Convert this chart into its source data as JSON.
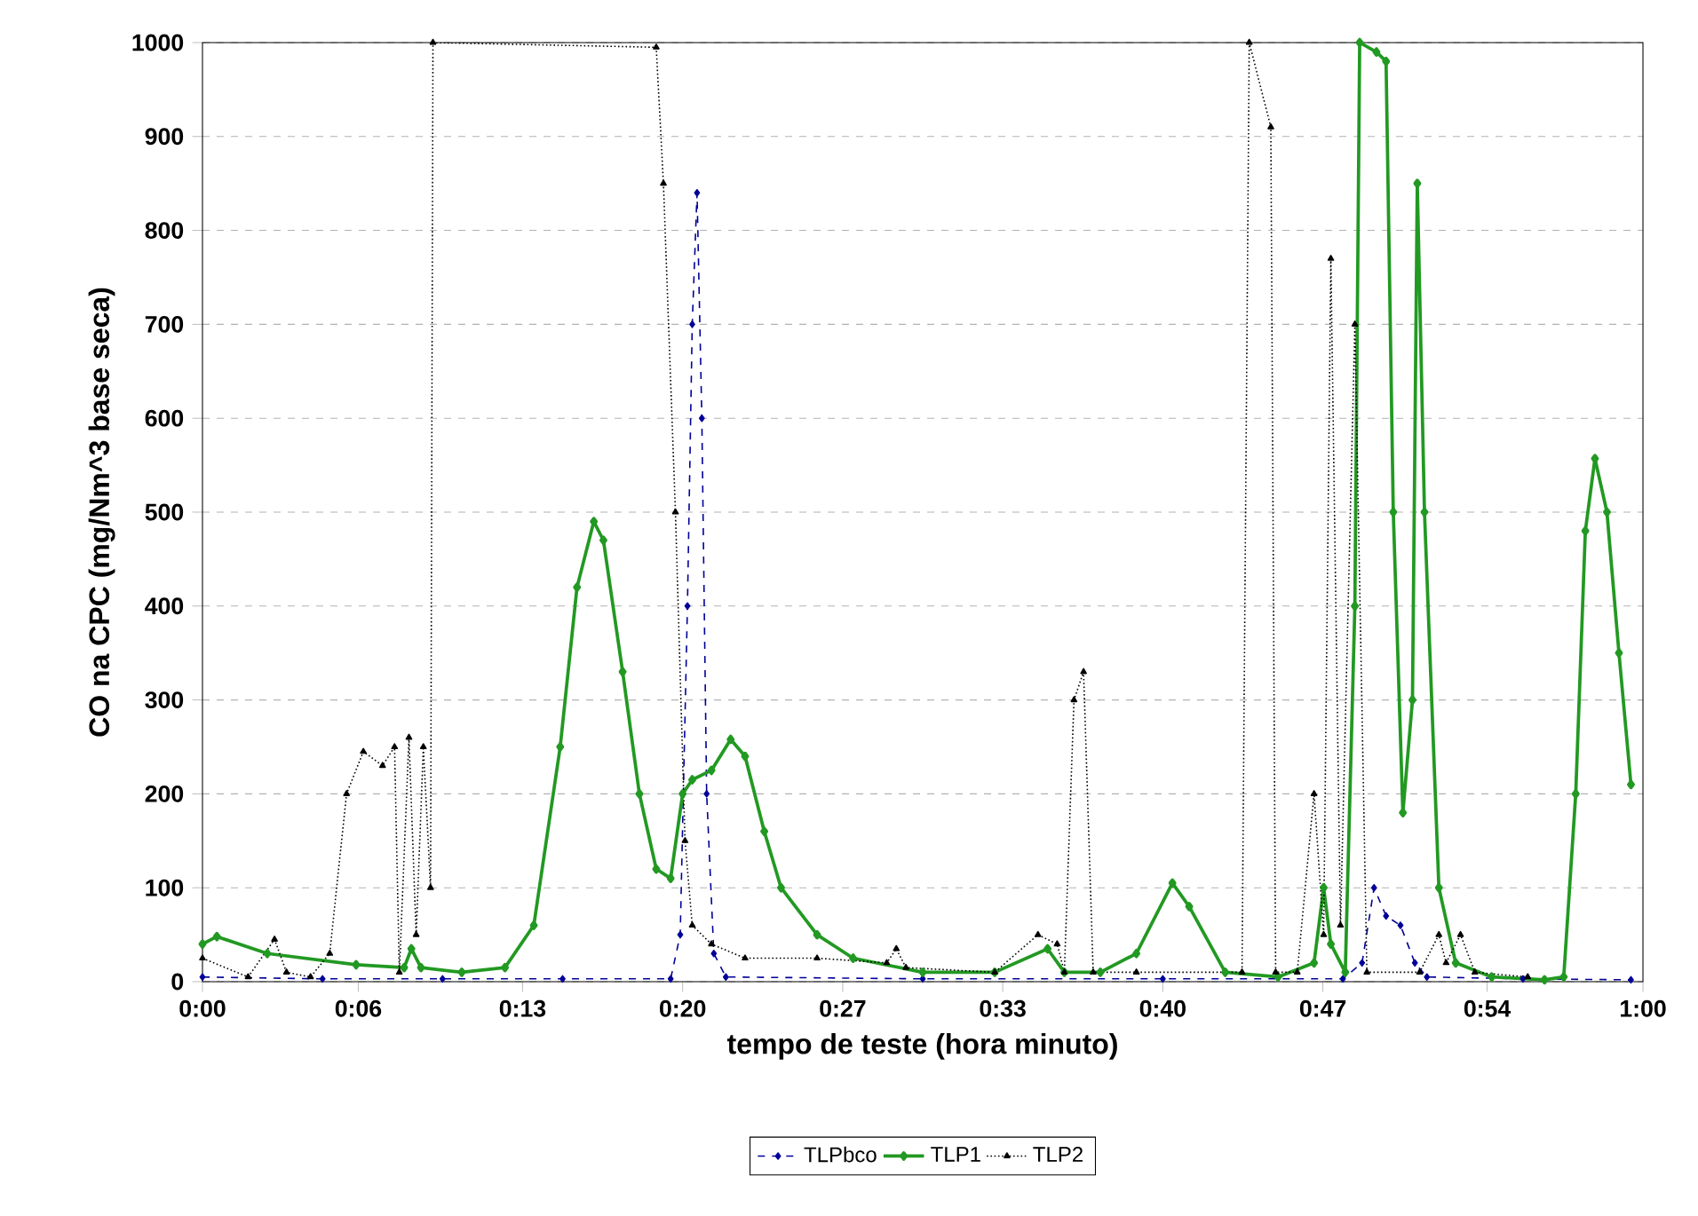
{
  "chart_data": {
    "type": "line",
    "xlabel": "tempo de teste (hora minuto)",
    "ylabel": "CO na CPC (mg/Nm^3 base seca)",
    "xlim": [
      0,
      60
    ],
    "xticks": [
      {
        "value": 0,
        "label": "0:00"
      },
      {
        "value": 6.49,
        "label": "0:06"
      },
      {
        "value": 13.333,
        "label": "0:13"
      },
      {
        "value": 20,
        "label": "0:20"
      },
      {
        "value": 26.667,
        "label": "0:27"
      },
      {
        "value": 33.333,
        "label": "0:33"
      },
      {
        "value": 40,
        "label": "0:40"
      },
      {
        "value": 46.667,
        "label": "0:47"
      },
      {
        "value": 53.51,
        "label": "0:54"
      },
      {
        "value": 60,
        "label": "1:00"
      }
    ],
    "ylim": [
      0,
      1000
    ],
    "yticks": [
      0,
      100,
      200,
      300,
      400,
      500,
      600,
      700,
      800,
      900,
      1000
    ],
    "grid": "y",
    "legend": "bottom",
    "series": [
      {
        "name": "TLPbco",
        "color": "#000099",
        "marker": "diamond",
        "line_style": "dashed",
        "x": [
          0,
          5,
          10,
          15,
          19.5,
          19.9,
          20.2,
          20.4,
          20.6,
          20.8,
          21.0,
          21.3,
          21.8,
          30,
          40,
          47.5,
          48.3,
          48.8,
          49.3,
          49.9,
          50.5,
          51,
          55,
          59.5
        ],
        "values": [
          5,
          3,
          3,
          3,
          3,
          50,
          400,
          700,
          840,
          600,
          200,
          30,
          5,
          3,
          3,
          3,
          20,
          100,
          70,
          60,
          20,
          5,
          3,
          2
        ]
      },
      {
        "name": "TLP1",
        "color": "#229922",
        "marker": "diamond",
        "line_style": "solid",
        "x": [
          0,
          0.6,
          2.7,
          6.4,
          8.4,
          8.7,
          9.1,
          10.8,
          12.6,
          13.8,
          14.9,
          15.6,
          16.3,
          16.7,
          17.5,
          18.2,
          18.9,
          19.5,
          20,
          20.4,
          21.2,
          22,
          22.6,
          23.4,
          24.1,
          25.6,
          27.1,
          30,
          33,
          35.2,
          35.9,
          37.4,
          38.9,
          40.4,
          41.1,
          42.6,
          44.8,
          46.3,
          46.7,
          47,
          47.6,
          48,
          48.2,
          48.9,
          49.3,
          49.6,
          50,
          50.4,
          50.6,
          50.9,
          51.5,
          52.2,
          53.7,
          55.9,
          56.7,
          57.2,
          57.6,
          58,
          58.5,
          59,
          59.5
        ],
        "values": [
          40,
          48,
          30,
          18,
          15,
          35,
          15,
          10,
          15,
          60,
          250,
          420,
          490,
          470,
          330,
          200,
          120,
          110,
          200,
          215,
          225,
          258,
          240,
          160,
          100,
          50,
          25,
          10,
          10,
          35,
          10,
          10,
          30,
          105,
          80,
          10,
          5,
          20,
          100,
          40,
          10,
          400,
          1000,
          990,
          980,
          500,
          180,
          300,
          850,
          500,
          100,
          20,
          5,
          2,
          5,
          200,
          480,
          557,
          500,
          350,
          210
        ]
      },
      {
        "name": "TLP2",
        "color": "#000000",
        "marker": "triangle",
        "line_style": "dotted",
        "x": [
          0,
          1.9,
          3,
          3.5,
          4.5,
          5.3,
          6,
          6.7,
          7.5,
          8,
          8.2,
          8.6,
          8.9,
          9.2,
          9.5,
          9.6,
          18.9,
          19.2,
          19.7,
          20.1,
          20.4,
          21.2,
          22.6,
          25.6,
          28.5,
          28.9,
          29.3,
          33,
          34.8,
          35.6,
          35.9,
          36.3,
          36.7,
          37.1,
          38.9,
          43.3,
          43.6,
          44.5,
          44.7,
          45.6,
          46.3,
          46.7,
          47,
          47.4,
          48,
          48.5,
          50.7,
          51.5,
          51.8,
          52.4,
          53,
          55.2
        ],
        "values": [
          25,
          5,
          45,
          10,
          5,
          30,
          200,
          245,
          230,
          250,
          10,
          260,
          50,
          250,
          100,
          1000,
          995,
          850,
          500,
          150,
          60,
          40,
          25,
          25,
          20,
          35,
          15,
          10,
          50,
          40,
          10,
          300,
          330,
          10,
          10,
          10,
          1000,
          910,
          10,
          10,
          200,
          50,
          770,
          60,
          700,
          10,
          10,
          50,
          20,
          50,
          10,
          5
        ]
      }
    ]
  }
}
